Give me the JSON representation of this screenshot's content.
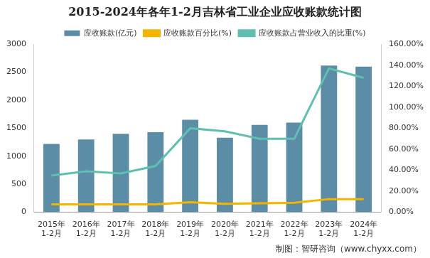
{
  "chart_data": {
    "type": "bar",
    "title": "2015-2024年各年1-2月吉林省工业企业应收账款统计图",
    "source": "制图：智研咨询（www.chyxx.com）",
    "categories": [
      "2015年1-2月",
      "2016年1-2月",
      "2017年1-2月",
      "2018年1-2月",
      "2019年1-2月",
      "2020年1-2月",
      "2021年1-2月",
      "2022年1-2月",
      "2023年1-2月",
      "2024年1-2月"
    ],
    "series": [
      {
        "name": "应收账款(亿元)",
        "type": "bar",
        "color": "#5b8da6",
        "values": [
          1220,
          1300,
          1400,
          1430,
          1650,
          1330,
          1560,
          1600,
          2620,
          2600
        ]
      },
      {
        "name": "应收账款百分比(%)",
        "type": "line",
        "axis": "y2",
        "color": "#f5b400",
        "marker": "none",
        "values": [
          7.5,
          7.5,
          7.5,
          7.5,
          9.5,
          8,
          8.5,
          9,
          12.5,
          12.5
        ]
      },
      {
        "name": "应收账款占营业收入的比重(%)",
        "type": "line",
        "axis": "y2",
        "color": "#5fbfb0",
        "marker": "none",
        "values": [
          35,
          39,
          37,
          44,
          80,
          77,
          70,
          70,
          137,
          128
        ]
      }
    ],
    "ylim": [
      0,
      3000
    ],
    "yticks": [
      0,
      500,
      1000,
      1500,
      2000,
      2500,
      3000
    ],
    "y2lim": [
      0,
      160
    ],
    "y2ticks": [
      {
        "value": 0,
        "label": "0.00%"
      },
      {
        "value": 20,
        "label": "20.00%"
      },
      {
        "value": 40,
        "label": "40.00%"
      },
      {
        "value": 60,
        "label": "60.00%"
      },
      {
        "value": 80,
        "label": "80.00%"
      },
      {
        "value": 100,
        "label": "100.00%"
      },
      {
        "value": 120,
        "label": "120.00%"
      },
      {
        "value": 140,
        "label": "140.00%"
      },
      {
        "value": 160,
        "label": "160.00%"
      }
    ],
    "grid": false,
    "legend": "top"
  }
}
